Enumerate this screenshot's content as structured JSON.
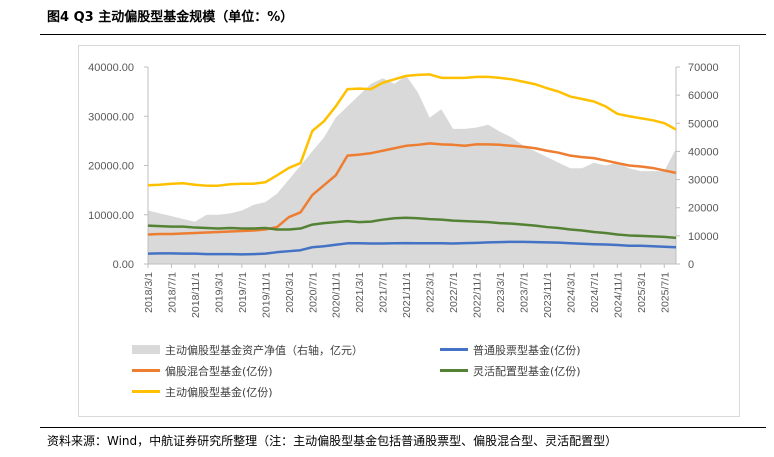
{
  "figure": {
    "title": "图4  Q3 主动偏股型基金规模（单位：%）",
    "source": "资料来源：Wind，中航证券研究所整理（注：主动偏股型基金包括普通股票型、偏股混合型、灵活配置型）"
  },
  "chart_data": {
    "type": "line",
    "x": [
      "2018/3/1",
      "2018/5/1",
      "2018/7/1",
      "2018/9/1",
      "2018/11/1",
      "2019/1/1",
      "2019/3/1",
      "2019/5/1",
      "2019/7/1",
      "2019/9/1",
      "2019/11/1",
      "2020/1/1",
      "2020/3/1",
      "2020/5/1",
      "2020/7/1",
      "2020/9/1",
      "2020/11/1",
      "2021/1/1",
      "2021/3/1",
      "2021/5/1",
      "2021/7/1",
      "2021/9/1",
      "2021/11/1",
      "2022/1/1",
      "2022/3/1",
      "2022/5/1",
      "2022/7/1",
      "2022/9/1",
      "2022/11/1",
      "2023/1/1",
      "2023/3/1",
      "2023/5/1",
      "2023/7/1",
      "2023/9/1",
      "2023/11/1",
      "2024/1/1",
      "2024/3/1",
      "2024/5/1",
      "2024/7/1",
      "2024/9/1",
      "2024/11/1",
      "2025/1/1",
      "2025/3/1",
      "2025/5/1",
      "2025/7/1",
      "2025/9/1"
    ],
    "x_tick_labels": [
      "2018/3/1",
      "2018/7/1",
      "2018/11/1",
      "2019/3/1",
      "2019/7/1",
      "2019/11/1",
      "2020/3/1",
      "2020/7/1",
      "2020/11/1",
      "2021/3/1",
      "2021/7/1",
      "2021/11/1",
      "2022/3/1",
      "2022/7/1",
      "2022/11/1",
      "2023/3/1",
      "2023/7/1",
      "2023/11/1",
      "2024/3/1",
      "2024/7/1",
      "2024/11/1",
      "2025/3/1",
      "2025/7/1"
    ],
    "y_left": {
      "ylim": [
        0,
        40000
      ],
      "ticks": [
        "0.00",
        "10000.00",
        "20000.00",
        "30000.00",
        "40000.00"
      ]
    },
    "y_right": {
      "ylim": [
        0,
        70000
      ],
      "ticks": [
        "0",
        "10000",
        "20000",
        "30000",
        "40000",
        "50000",
        "60000",
        "70000"
      ]
    },
    "area": {
      "name": "主动偏股型基金资产净值（右轴，亿元）",
      "axis": "right",
      "color": "#d9d9d9",
      "values": [
        19000,
        18000,
        17000,
        16000,
        15000,
        17500,
        17500,
        18000,
        19000,
        21000,
        22000,
        25000,
        30000,
        35000,
        40000,
        45000,
        52000,
        56000,
        60000,
        64000,
        66000,
        64000,
        67000,
        61000,
        52000,
        55000,
        48000,
        48000,
        48500,
        49500,
        47000,
        45000,
        42000,
        40000,
        38000,
        36000,
        34000,
        34000,
        36000,
        35000,
        36000,
        34000,
        33000,
        33000,
        33000,
        41000
      ]
    },
    "series": [
      {
        "name": "普通股票型基金(亿份)",
        "axis": "left",
        "color": "#4472c4",
        "values": [
          2100,
          2150,
          2150,
          2100,
          2100,
          2000,
          2000,
          2000,
          1950,
          2000,
          2100,
          2400,
          2600,
          2800,
          3400,
          3600,
          3900,
          4200,
          4200,
          4150,
          4150,
          4200,
          4250,
          4200,
          4200,
          4200,
          4150,
          4250,
          4300,
          4400,
          4450,
          4500,
          4500,
          4450,
          4400,
          4350,
          4200,
          4100,
          4000,
          3950,
          3850,
          3700,
          3700,
          3600,
          3500,
          3400
        ]
      },
      {
        "name": "偏股混合型基金(亿份)",
        "axis": "left",
        "color": "#ed7d31",
        "values": [
          6000,
          6100,
          6100,
          6200,
          6300,
          6400,
          6500,
          6600,
          6700,
          6800,
          7000,
          7500,
          9500,
          10500,
          14000,
          16000,
          18000,
          22000,
          22200,
          22500,
          23000,
          23500,
          24000,
          24200,
          24500,
          24300,
          24200,
          24000,
          24300,
          24300,
          24200,
          24000,
          23800,
          23500,
          23000,
          22600,
          22000,
          21700,
          21500,
          21000,
          20500,
          20000,
          19800,
          19500,
          19000,
          18500
        ]
      },
      {
        "name": "灵活配置型基金(亿份)",
        "axis": "left",
        "color": "#548235",
        "values": [
          7800,
          7700,
          7600,
          7600,
          7400,
          7300,
          7200,
          7300,
          7200,
          7200,
          7300,
          7000,
          7000,
          7200,
          8000,
          8300,
          8500,
          8700,
          8500,
          8600,
          9000,
          9300,
          9400,
          9300,
          9100,
          9000,
          8800,
          8700,
          8600,
          8500,
          8300,
          8200,
          8000,
          7800,
          7500,
          7300,
          7000,
          6800,
          6500,
          6300,
          6000,
          5800,
          5700,
          5600,
          5500,
          5300
        ]
      },
      {
        "name": "主动偏股型基金(亿份)",
        "axis": "left",
        "color": "#ffc000",
        "values": [
          16000,
          16100,
          16300,
          16400,
          16100,
          15900,
          15900,
          16200,
          16300,
          16300,
          16600,
          18000,
          19500,
          20500,
          27000,
          29000,
          32000,
          35500,
          35600,
          35500,
          36800,
          37500,
          38200,
          38400,
          38500,
          37800,
          37800,
          37800,
          38000,
          38000,
          37800,
          37500,
          37000,
          36500,
          35700,
          35000,
          34000,
          33500,
          33000,
          32000,
          30500,
          30000,
          29600,
          29200,
          28600,
          27300
        ]
      }
    ],
    "legend": {
      "placement": "bottom",
      "entries": [
        {
          "label": "主动偏股型基金资产净值（右轴，亿元）",
          "color": "#d9d9d9",
          "kind": "area"
        },
        {
          "label": "普通股票型基金(亿份)",
          "color": "#4472c4",
          "kind": "line"
        },
        {
          "label": "偏股混合型基金(亿份)",
          "color": "#ed7d31",
          "kind": "line"
        },
        {
          "label": "灵活配置型基金(亿份)",
          "color": "#548235",
          "kind": "line"
        },
        {
          "label": "主动偏股型基金(亿份)",
          "color": "#ffc000",
          "kind": "line"
        }
      ]
    },
    "grid": false
  }
}
